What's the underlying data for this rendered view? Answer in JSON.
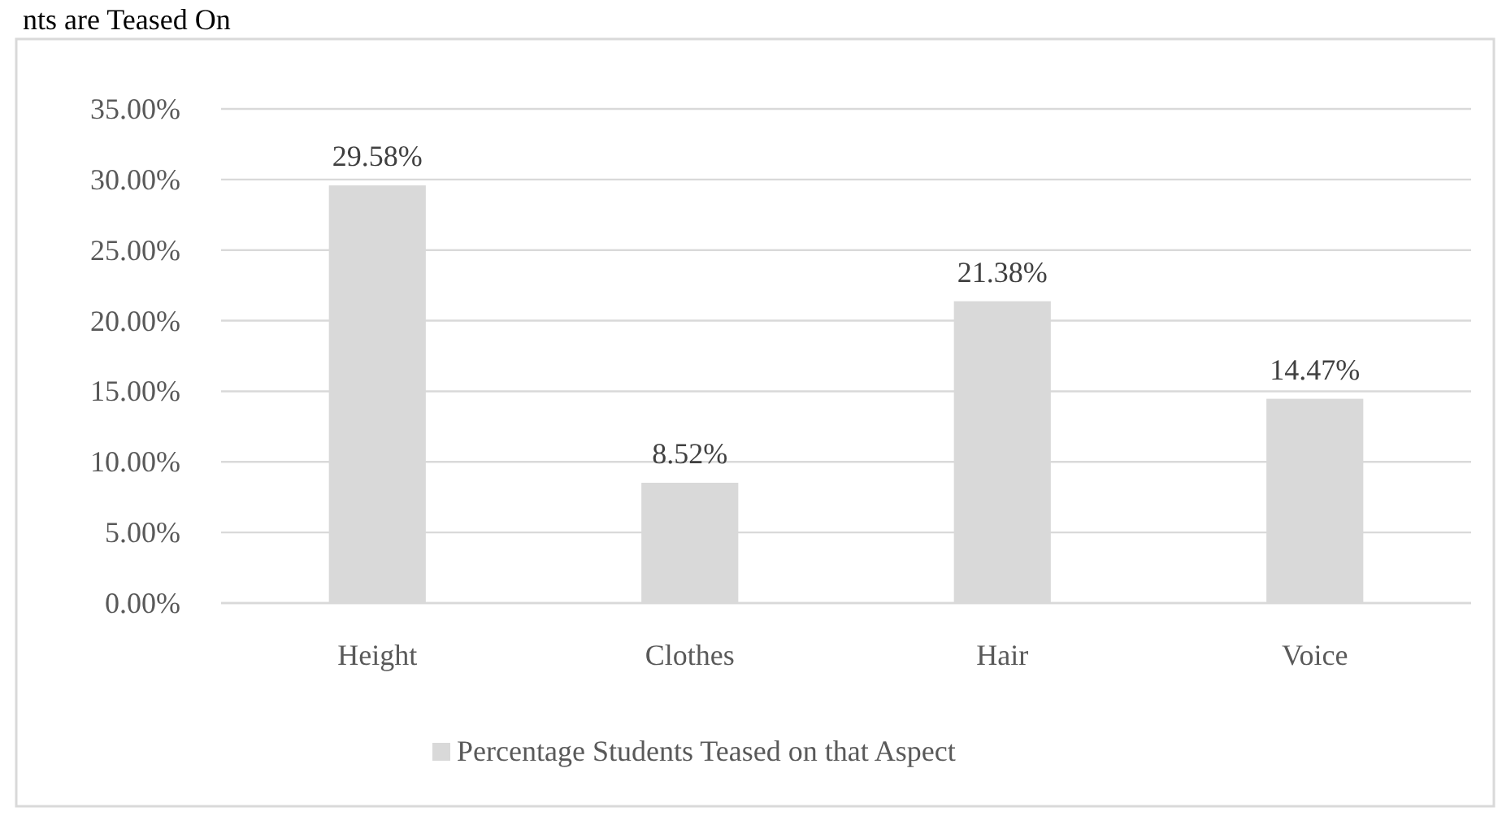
{
  "chart_data": {
    "type": "bar",
    "title": "nts are Teased On",
    "categories": [
      "Height",
      "Clothes",
      "Hair",
      "Voice"
    ],
    "series": [
      {
        "name": "Percentage Students Teased on that Aspect",
        "color": "#d9d9d9",
        "values": [
          29.58,
          8.52,
          21.38,
          14.47
        ],
        "value_labels": [
          "29.58%",
          "8.52%",
          "21.38%",
          "14.47%"
        ]
      }
    ],
    "ylim": [
      0,
      35
    ],
    "yticks": [
      {
        "value": 0,
        "label": "0.00%"
      },
      {
        "value": 5,
        "label": "5.00%"
      },
      {
        "value": 10,
        "label": "10.00%"
      },
      {
        "value": 15,
        "label": "15.00%"
      },
      {
        "value": 20,
        "label": "20.00%"
      },
      {
        "value": 25,
        "label": "25.00%"
      },
      {
        "value": 30,
        "label": "30.00%"
      },
      {
        "value": 35,
        "label": "35.00%"
      }
    ],
    "grid": "y",
    "legend": "bottom"
  }
}
